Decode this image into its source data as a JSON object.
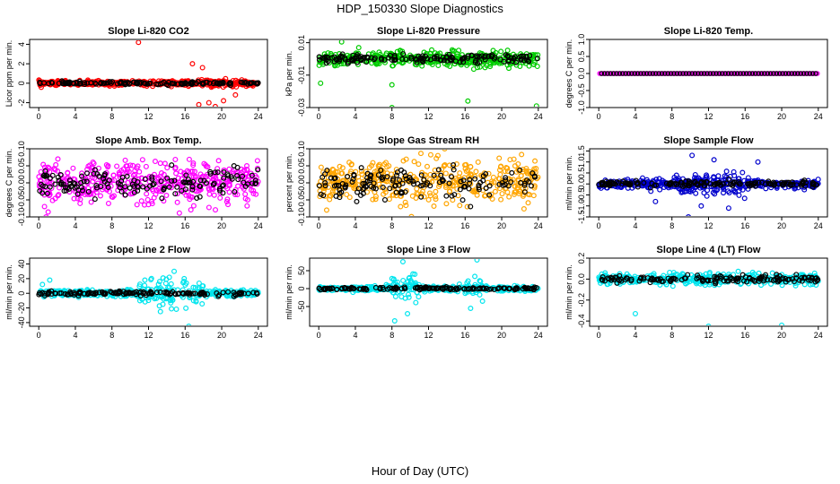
{
  "title": "HDP_150330  Slope Diagnostics",
  "xlabel": "Hour of Day (UTC)",
  "chart_data": [
    {
      "type": "scatter",
      "title": "Slope Li-820 CO2",
      "ylabel": "Licor ppm per min.",
      "xlim": [
        0,
        24
      ],
      "ylim": [
        -2.5,
        4.5
      ],
      "xticks": [
        0,
        4,
        8,
        12,
        16,
        20,
        24
      ],
      "yticks": [
        -2,
        0,
        2,
        4
      ],
      "ytick_labels": [
        "-2",
        "0",
        "2",
        "4"
      ],
      "colors": [
        "#ff0000",
        "#000000"
      ],
      "spread": 0.22,
      "spikes": [
        [
          10.9,
          4.2
        ],
        [
          17.5,
          -2.2
        ],
        [
          18.6,
          -2.0
        ],
        [
          19.3,
          -2.4
        ],
        [
          20.2,
          -1.8
        ],
        [
          16.8,
          2.0
        ],
        [
          17.9,
          1.6
        ],
        [
          21.5,
          -1.2
        ]
      ],
      "busy": [
        [
          16,
          22,
          1.4
        ]
      ]
    },
    {
      "type": "scatter",
      "title": "Slope Li-820 Pressure",
      "ylabel": "kPa per min.",
      "xlim": [
        0,
        24
      ],
      "ylim": [
        -0.03,
        0.012
      ],
      "xticks": [
        0,
        4,
        8,
        12,
        16,
        20,
        24
      ],
      "yticks": [
        -0.03,
        -0.01,
        0.01
      ],
      "ytick_labels": [
        "-0.03",
        "-0.01",
        "0.01"
      ],
      "colors": [
        "#00cc00",
        "#000000"
      ],
      "spread": 0.004,
      "spikes": [
        [
          8.0,
          -0.03
        ],
        [
          16.3,
          -0.026
        ],
        [
          23.8,
          -0.029
        ],
        [
          0.2,
          -0.015
        ],
        [
          2.5,
          0.0105
        ],
        [
          8.0,
          -0.016
        ]
      ],
      "busy": [
        [
          0,
          24,
          1.0
        ]
      ]
    },
    {
      "type": "scatter",
      "title": "Slope Li-820 Temp.",
      "ylabel": "degrees C per min.",
      "xlim": [
        0,
        24
      ],
      "ylim": [
        -1.0,
        1.0
      ],
      "xticks": [
        0,
        4,
        8,
        12,
        16,
        20,
        24
      ],
      "yticks": [
        -1,
        -0.5,
        0,
        0.5,
        1
      ],
      "ytick_labels": [
        "-1.0",
        "-0.5",
        "0.0",
        "0.5",
        "1.0"
      ],
      "colors": [
        "#ff00ff",
        "#000000"
      ],
      "spread": 0.0,
      "spikes": [],
      "busy": []
    },
    {
      "type": "scatter",
      "title": "Slope Amb. Box Temp.",
      "ylabel": "degrees C per min.",
      "xlim": [
        0,
        24
      ],
      "ylim": [
        -0.1,
        0.1
      ],
      "xticks": [
        0,
        4,
        8,
        12,
        16,
        20,
        24
      ],
      "yticks": [
        -0.1,
        -0.05,
        0,
        0.05,
        0.1
      ],
      "ytick_labels": [
        "-0.10",
        "-0.05",
        "0.00",
        "0.05",
        "0.10"
      ],
      "colors": [
        "#ff00ff",
        "#000000"
      ],
      "spread": 0.055,
      "spikes": [],
      "busy": [
        [
          0,
          24,
          1.0
        ]
      ]
    },
    {
      "type": "scatter",
      "title": "Slope Gas Stream RH",
      "ylabel": "percent per min.",
      "xlim": [
        0,
        24
      ],
      "ylim": [
        -0.1,
        0.1
      ],
      "xticks": [
        0,
        4,
        8,
        12,
        16,
        20,
        24
      ],
      "yticks": [
        -0.1,
        -0.05,
        0,
        0.05,
        0.1
      ],
      "ytick_labels": [
        "-0.10",
        "-0.05",
        "0.00",
        "0.05",
        "0.10"
      ],
      "colors": [
        "#ffa500",
        "#000000"
      ],
      "spread": 0.06,
      "spikes": [],
      "busy": [
        [
          0,
          24,
          1.0
        ]
      ]
    },
    {
      "type": "scatter",
      "title": "Slope Sample Flow",
      "ylabel": "ml/min per min.",
      "xlim": [
        0,
        24
      ],
      "ylim": [
        -1.5,
        1.6
      ],
      "xticks": [
        0,
        4,
        8,
        12,
        16,
        20,
        24
      ],
      "yticks": [
        -1.5,
        -1,
        -0.5,
        0,
        0.5,
        1,
        1.5
      ],
      "ytick_labels": [
        "-1.5",
        "-1.0",
        "-0.5",
        "0.0",
        "0.5",
        "1.0",
        "1.5"
      ],
      "colors": [
        "#0000cc",
        "#000000"
      ],
      "spread": 0.18,
      "spikes": [
        [
          9.8,
          -1.5
        ],
        [
          10.2,
          1.3
        ],
        [
          11.2,
          -1.0
        ],
        [
          12.6,
          1.1
        ],
        [
          14.2,
          -1.1
        ],
        [
          17.4,
          1.0
        ],
        [
          6.2,
          -0.8
        ]
      ],
      "busy": [
        [
          8,
          16,
          2.2
        ]
      ]
    },
    {
      "type": "scatter",
      "title": "Slope Line 2 Flow",
      "ylabel": "ml/min per min.",
      "xlim": [
        0,
        24
      ],
      "ylim": [
        -45,
        48
      ],
      "xticks": [
        0,
        4,
        8,
        12,
        16,
        20,
        24
      ],
      "yticks": [
        -40,
        -20,
        0,
        20,
        40
      ],
      "ytick_labels": [
        "-40",
        "-20",
        "0",
        "20",
        "40"
      ],
      "colors": [
        "#00e5ee",
        "#000000"
      ],
      "spread": 4.0,
      "spikes": [
        [
          1.2,
          18
        ],
        [
          0.4,
          12
        ],
        [
          16.4,
          -45
        ],
        [
          14.8,
          30
        ],
        [
          13.3,
          -25
        ],
        [
          11.6,
          18
        ],
        [
          15.9,
          20
        ]
      ],
      "busy": [
        [
          11,
          18,
          4.0
        ]
      ]
    },
    {
      "type": "scatter",
      "title": "Slope Line 3 Flow",
      "ylabel": "ml/min per min.",
      "xlim": [
        0,
        24
      ],
      "ylim": [
        -105,
        85
      ],
      "xticks": [
        0,
        4,
        8,
        12,
        16,
        20,
        24
      ],
      "yticks": [
        -50,
        0,
        50
      ],
      "ytick_labels": [
        "-50",
        "0",
        "50"
      ],
      "colors": [
        "#00e5ee",
        "#000000"
      ],
      "spread": 6.0,
      "spikes": [
        [
          8.3,
          -90
        ],
        [
          9.7,
          -70
        ],
        [
          9.2,
          75
        ],
        [
          10.5,
          40
        ],
        [
          17.3,
          80
        ],
        [
          16.6,
          -55
        ],
        [
          17.9,
          -35
        ]
      ],
      "busy": [
        [
          8,
          11,
          5.0
        ],
        [
          16,
          18,
          4.0
        ]
      ]
    },
    {
      "type": "scatter",
      "title": "Slope Line 4 (LT) Flow",
      "ylabel": "ml/min per min.",
      "xlim": [
        0,
        24
      ],
      "ylim": [
        -0.45,
        0.2
      ],
      "xticks": [
        0,
        4,
        8,
        12,
        16,
        20,
        24
      ],
      "yticks": [
        -0.4,
        -0.2,
        0,
        0.2
      ],
      "ytick_labels": [
        "-0.4",
        "-0.2",
        "0.0",
        "0.2"
      ],
      "colors": [
        "#00e5ee",
        "#000000"
      ],
      "spread": 0.045,
      "spikes": [
        [
          4.0,
          -0.33
        ],
        [
          12.0,
          -0.45
        ],
        [
          20.0,
          -0.44
        ]
      ],
      "busy": [
        [
          0,
          24,
          1.0
        ]
      ]
    }
  ]
}
